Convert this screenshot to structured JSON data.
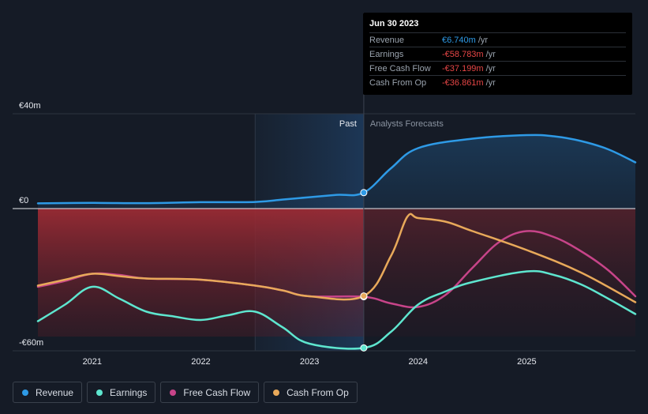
{
  "tooltip": {
    "date": "Jun 30 2023",
    "rows": [
      {
        "label": "Revenue",
        "value": "€6.740m",
        "unit": "/yr",
        "color": "#2e9ae6"
      },
      {
        "label": "Earnings",
        "value": "-€58.783m",
        "unit": "/yr",
        "color": "#e64646"
      },
      {
        "label": "Free Cash Flow",
        "value": "-€37.199m",
        "unit": "/yr",
        "color": "#e64646"
      },
      {
        "label": "Cash From Op",
        "value": "-€36.861m",
        "unit": "/yr",
        "color": "#e64646"
      }
    ]
  },
  "legend": [
    {
      "label": "Revenue",
      "color": "#2e9ae6"
    },
    {
      "label": "Earnings",
      "color": "#5ee6cf"
    },
    {
      "label": "Free Cash Flow",
      "color": "#c74489"
    },
    {
      "label": "Cash From Op",
      "color": "#e8a95a"
    }
  ],
  "chart_data": {
    "type": "line",
    "y_tick_labels": [
      "€40m",
      "€0",
      "-€60m"
    ],
    "y_ticks": [
      40,
      0,
      -60
    ],
    "ylim": [
      -60,
      40
    ],
    "xlim": [
      2020.5,
      2026.0
    ],
    "x_ticks": [
      2021,
      2022,
      2023,
      2024,
      2025
    ],
    "x_tick_labels": [
      "2021",
      "2022",
      "2023",
      "2024",
      "2025"
    ],
    "past_label": "Past",
    "forecast_label": "Analysts Forecasts",
    "divider_x": 2023.5,
    "shade_start_x": 2022.5,
    "series": [
      {
        "name": "Revenue",
        "color": "#2e9ae6",
        "points": [
          [
            2020.5,
            2.2
          ],
          [
            2021.0,
            2.4
          ],
          [
            2021.5,
            2.3
          ],
          [
            2022.0,
            2.7
          ],
          [
            2022.5,
            2.8
          ],
          [
            2022.75,
            3.8
          ],
          [
            2023.0,
            4.8
          ],
          [
            2023.25,
            5.8
          ],
          [
            2023.5,
            6.74
          ],
          [
            2023.75,
            17.0
          ],
          [
            2024.0,
            25.5
          ],
          [
            2024.5,
            29.5
          ],
          [
            2025.0,
            31.0
          ],
          [
            2025.25,
            30.5
          ],
          [
            2025.5,
            28.5
          ],
          [
            2025.75,
            25.0
          ],
          [
            2026.0,
            19.5
          ]
        ]
      },
      {
        "name": "Free Cash Flow",
        "color": "#c74489",
        "points": [
          [
            2020.5,
            -33.0
          ],
          [
            2020.75,
            -30.5
          ],
          [
            2021.0,
            -27.5
          ],
          [
            2021.25,
            -28.0
          ],
          [
            2021.5,
            -29.5
          ],
          [
            2022.0,
            -30.0
          ],
          [
            2022.5,
            -32.5
          ],
          [
            2022.75,
            -34.5
          ],
          [
            2023.0,
            -37.0
          ],
          [
            2023.5,
            -37.2
          ],
          [
            2023.75,
            -40.0
          ],
          [
            2024.0,
            -41.5
          ],
          [
            2024.25,
            -36.5
          ],
          [
            2024.5,
            -25.0
          ],
          [
            2024.75,
            -14.0
          ],
          [
            2025.0,
            -9.5
          ],
          [
            2025.25,
            -12.0
          ],
          [
            2025.5,
            -18.0
          ],
          [
            2025.75,
            -26.0
          ],
          [
            2026.0,
            -37.0
          ]
        ]
      },
      {
        "name": "Cash From Op",
        "color": "#e8a95a",
        "points": [
          [
            2020.5,
            -32.5
          ],
          [
            2020.75,
            -30.0
          ],
          [
            2021.0,
            -27.5
          ],
          [
            2021.25,
            -28.5
          ],
          [
            2021.5,
            -29.5
          ],
          [
            2022.0,
            -30.0
          ],
          [
            2022.5,
            -32.5
          ],
          [
            2022.75,
            -34.5
          ],
          [
            2023.0,
            -37.0
          ],
          [
            2023.5,
            -36.86
          ],
          [
            2023.75,
            -20.0
          ],
          [
            2023.9,
            -3.5
          ],
          [
            2024.0,
            -4.0
          ],
          [
            2024.25,
            -5.5
          ],
          [
            2024.5,
            -9.5
          ],
          [
            2025.0,
            -17.5
          ],
          [
            2025.5,
            -27.0
          ],
          [
            2026.0,
            -39.5
          ]
        ]
      },
      {
        "name": "Earnings",
        "color": "#5ee6cf",
        "points": [
          [
            2020.5,
            -47.5
          ],
          [
            2020.75,
            -40.5
          ],
          [
            2021.0,
            -33.0
          ],
          [
            2021.25,
            -38.0
          ],
          [
            2021.5,
            -43.5
          ],
          [
            2021.75,
            -45.5
          ],
          [
            2022.0,
            -47.0
          ],
          [
            2022.25,
            -45.0
          ],
          [
            2022.5,
            -43.5
          ],
          [
            2022.75,
            -50.0
          ],
          [
            2023.0,
            -57.0
          ],
          [
            2023.5,
            -58.78
          ],
          [
            2023.75,
            -52.0
          ],
          [
            2024.0,
            -40.5
          ],
          [
            2024.25,
            -35.0
          ],
          [
            2024.5,
            -31.0
          ],
          [
            2025.0,
            -26.5
          ],
          [
            2025.25,
            -28.0
          ],
          [
            2025.5,
            -32.0
          ],
          [
            2025.75,
            -38.0
          ],
          [
            2026.0,
            -44.5
          ]
        ]
      }
    ]
  }
}
